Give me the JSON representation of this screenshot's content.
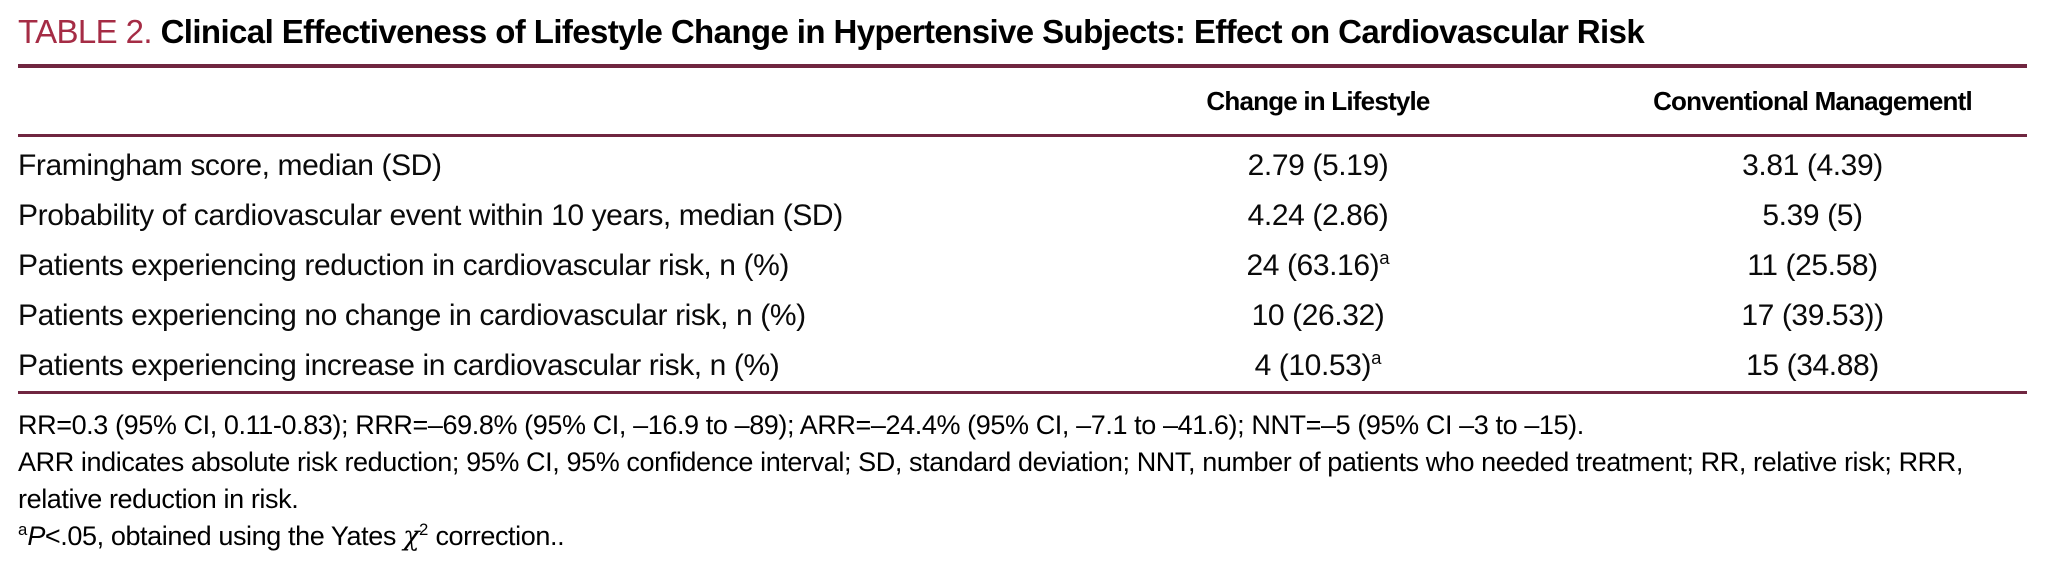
{
  "title": {
    "label": "TABLE 2.",
    "text": "Clinical Effectiveness of Lifestyle Change in Hypertensive Subjects: Effect on Cardiovascular Risk"
  },
  "colors": {
    "accent_red": "#a52c45",
    "rule_maroon": "#702640",
    "text": "#000000",
    "background": "#ffffff"
  },
  "table": {
    "columns": [
      "",
      "Change in Lifestyle",
      "Conventional Managementl"
    ],
    "rows": [
      {
        "label": "Framingham score, median (SD)",
        "lifestyle": "2.79 (5.19)",
        "conventional": "3.81 (4.39)"
      },
      {
        "label": "Probability of cardiovascular event within 10 years, median (SD)",
        "lifestyle": "4.24 (2.86)",
        "conventional": "5.39 (5)"
      },
      {
        "label": "Patients experiencing reduction in cardiovascular risk, n (%)",
        "lifestyle": "24 (63.16)",
        "lifestyle_sup": "a",
        "conventional": "11 (25.58)"
      },
      {
        "label": "Patients experiencing no change in cardiovascular risk, n (%)",
        "lifestyle": "10 (26.32)",
        "conventional": "17 (39.53))"
      },
      {
        "label": "Patients experiencing increase in cardiovascular risk, n (%)",
        "lifestyle": "4 (10.53)",
        "lifestyle_sup": "a",
        "conventional": "15 (34.88)"
      }
    ]
  },
  "footnotes": {
    "stats": "RR=0.3 (95% CI, 0.11-0.83); RRR=–69.8% (95% CI, –16.9 to –89); ARR=–24.4% (95% CI, –7.1 to –41.6); NNT=–5 (95% CI –3 to –15).",
    "abbrev_line1": "ARR indicates absolute risk reduction; 95% CI, 95% confidence interval; SD, standard deviation; NNT, number of patients who needed treatment; RR, relative risk; RRR,",
    "abbrev_line2": "relative reduction in risk.",
    "pvalue_sup": "a",
    "pvalue_p": "P",
    "pvalue_mid": "<.05, obtained using the Yates ",
    "pvalue_chi": "χ",
    "pvalue_chi_sup": "2",
    "pvalue_end": " correction.."
  }
}
